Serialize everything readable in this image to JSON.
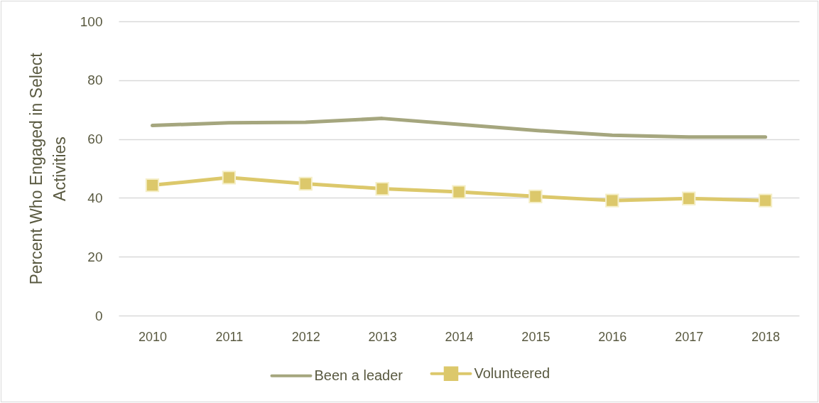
{
  "chart_data": {
    "type": "line",
    "ylabel": "Percent Who Engaged in Select Activities",
    "categories": [
      "2010",
      "2011",
      "2012",
      "2013",
      "2014",
      "2015",
      "2016",
      "2017",
      "2018"
    ],
    "series": [
      {
        "name": "Been a leader",
        "color": "#a5a67e",
        "marker": "none",
        "values": [
          64.6,
          65.5,
          65.7,
          67.0,
          65.0,
          62.9,
          61.3,
          60.7,
          60.7
        ]
      },
      {
        "name": "Volunteered",
        "color": "#dcc86b",
        "marker": "square",
        "values": [
          44.3,
          46.9,
          44.8,
          43.1,
          42.0,
          40.5,
          39.1,
          39.8,
          39.1
        ]
      }
    ],
    "ylim": [
      0,
      100
    ],
    "yticks": [
      0,
      20,
      40,
      60,
      80,
      100
    ],
    "grid": "y",
    "legend": "bottom"
  }
}
